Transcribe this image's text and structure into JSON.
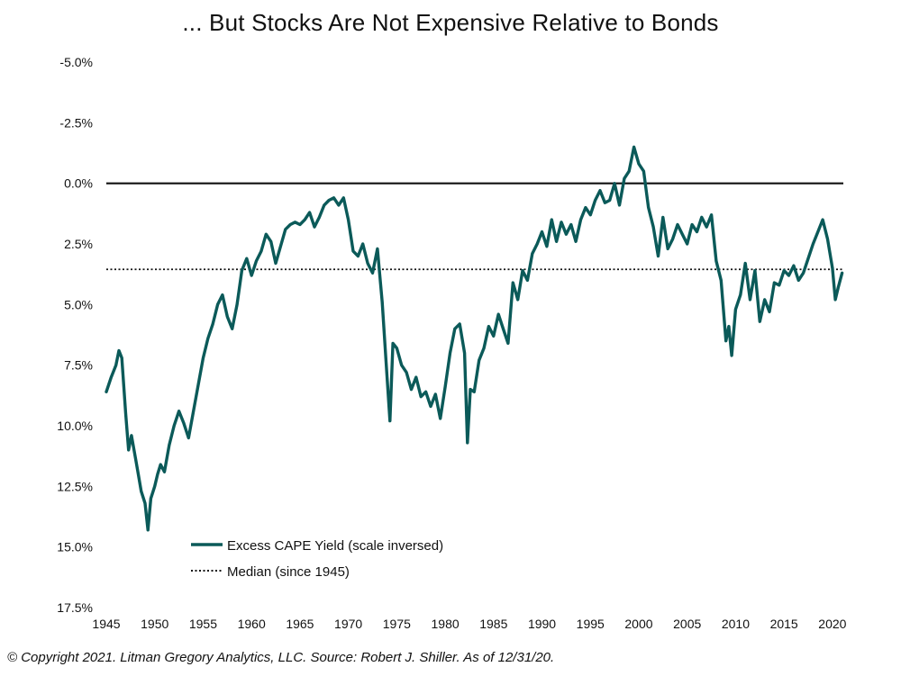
{
  "chart_data": {
    "type": "line",
    "title": "... But Stocks Are Not Expensive Relative to Bonds",
    "xlabel": "",
    "ylabel": "",
    "y_inverted": true,
    "ylim": [
      -5.0,
      17.5
    ],
    "xlim": [
      1945,
      2021.5
    ],
    "y_ticks": [
      -5.0,
      -2.5,
      0.0,
      2.5,
      5.0,
      7.5,
      10.0,
      12.5,
      15.0,
      17.5
    ],
    "y_tick_labels": [
      "-5.0%",
      "-2.5%",
      "0.0%",
      "2.5%",
      "5.0%",
      "7.5%",
      "10.0%",
      "12.5%",
      "15.0%",
      "17.5%"
    ],
    "x_ticks": [
      1945,
      1950,
      1955,
      1960,
      1965,
      1970,
      1975,
      1980,
      1985,
      1990,
      1995,
      2000,
      2005,
      2010,
      2015,
      2020
    ],
    "x_tick_labels": [
      "1945",
      "1950",
      "1955",
      "1960",
      "1965",
      "1970",
      "1975",
      "1980",
      "1985",
      "1990",
      "1995",
      "2000",
      "2005",
      "2010",
      "2015",
      "2020"
    ],
    "reference_lines": [
      {
        "name": "Zero",
        "y": 0.0
      },
      {
        "name": "Median (since 1945)",
        "y": 3.55
      }
    ],
    "legend": [
      {
        "label": "Excess CAPE Yield (scale inversed)",
        "style": "solid",
        "color": "#0b5a59"
      },
      {
        "label": "Median (since 1945)",
        "style": "dotted",
        "color": "#111111"
      }
    ],
    "legend_position": "bottom-left",
    "series": [
      {
        "name": "Excess CAPE Yield (scale inversed)",
        "color": "#0b5a59",
        "x": [
          1945.0,
          1945.5,
          1946.0,
          1946.3,
          1946.6,
          1947.0,
          1947.3,
          1947.6,
          1948.0,
          1948.3,
          1948.6,
          1949.0,
          1949.3,
          1949.6,
          1950.0,
          1950.3,
          1950.6,
          1951.0,
          1951.5,
          1952.0,
          1952.5,
          1953.0,
          1953.5,
          1954.0,
          1954.5,
          1955.0,
          1955.5,
          1956.0,
          1956.5,
          1957.0,
          1957.5,
          1958.0,
          1958.5,
          1959.0,
          1959.5,
          1960.0,
          1960.5,
          1961.0,
          1961.5,
          1962.0,
          1962.5,
          1963.0,
          1963.5,
          1964.0,
          1964.5,
          1965.0,
          1965.5,
          1966.0,
          1966.5,
          1967.0,
          1967.5,
          1968.0,
          1968.5,
          1969.0,
          1969.5,
          1970.0,
          1970.5,
          1971.0,
          1971.5,
          1972.0,
          1972.5,
          1973.0,
          1973.5,
          1974.0,
          1974.3,
          1974.6,
          1975.0,
          1975.5,
          1976.0,
          1976.5,
          1977.0,
          1977.5,
          1978.0,
          1978.5,
          1979.0,
          1979.5,
          1980.0,
          1980.5,
          1981.0,
          1981.5,
          1982.0,
          1982.3,
          1982.6,
          1983.0,
          1983.5,
          1984.0,
          1984.5,
          1985.0,
          1985.5,
          1986.0,
          1986.5,
          1987.0,
          1987.5,
          1988.0,
          1988.5,
          1989.0,
          1989.5,
          1990.0,
          1990.5,
          1991.0,
          1991.5,
          1992.0,
          1992.5,
          1993.0,
          1993.5,
          1994.0,
          1994.5,
          1995.0,
          1995.5,
          1996.0,
          1996.5,
          1997.0,
          1997.5,
          1998.0,
          1998.5,
          1999.0,
          1999.5,
          2000.0,
          2000.5,
          2001.0,
          2001.5,
          2002.0,
          2002.5,
          2003.0,
          2003.5,
          2004.0,
          2004.5,
          2005.0,
          2005.5,
          2006.0,
          2006.5,
          2007.0,
          2007.5,
          2008.0,
          2008.5,
          2009.0,
          2009.3,
          2009.6,
          2010.0,
          2010.5,
          2011.0,
          2011.5,
          2012.0,
          2012.5,
          2013.0,
          2013.5,
          2014.0,
          2014.5,
          2015.0,
          2015.5,
          2016.0,
          2016.5,
          2017.0,
          2017.5,
          2018.0,
          2018.5,
          2019.0,
          2019.5,
          2020.0,
          2020.3,
          2020.6,
          2021.0
        ],
        "values": [
          8.6,
          8.0,
          7.5,
          6.9,
          7.2,
          9.5,
          11.0,
          10.4,
          11.3,
          12.0,
          12.7,
          13.2,
          14.3,
          13.0,
          12.5,
          12.0,
          11.6,
          11.9,
          10.8,
          10.0,
          9.4,
          9.9,
          10.5,
          9.4,
          8.3,
          7.2,
          6.4,
          5.8,
          5.0,
          4.6,
          5.5,
          6.0,
          5.0,
          3.6,
          3.1,
          3.8,
          3.2,
          2.8,
          2.1,
          2.4,
          3.3,
          2.6,
          1.9,
          1.7,
          1.6,
          1.7,
          1.5,
          1.2,
          1.8,
          1.4,
          0.9,
          0.7,
          0.6,
          0.9,
          0.6,
          1.5,
          2.8,
          3.0,
          2.5,
          3.3,
          3.7,
          2.7,
          4.9,
          8.0,
          9.8,
          6.6,
          6.8,
          7.5,
          7.8,
          8.5,
          8.0,
          8.8,
          8.6,
          9.2,
          8.7,
          9.7,
          8.4,
          7.0,
          6.0,
          5.8,
          7.0,
          10.7,
          8.5,
          8.6,
          7.3,
          6.8,
          5.9,
          6.3,
          5.4,
          6.0,
          6.6,
          4.1,
          4.8,
          3.6,
          4.0,
          2.9,
          2.5,
          2.0,
          2.6,
          1.5,
          2.4,
          1.6,
          2.1,
          1.7,
          2.4,
          1.5,
          1.0,
          1.3,
          0.7,
          0.3,
          0.8,
          0.7,
          0.0,
          0.9,
          -0.2,
          -0.5,
          -1.5,
          -0.8,
          -0.5,
          1.0,
          1.8,
          3.0,
          1.4,
          2.7,
          2.3,
          1.7,
          2.1,
          2.5,
          1.7,
          2.0,
          1.4,
          1.8,
          1.3,
          3.2,
          4.0,
          6.5,
          5.9,
          7.1,
          5.2,
          4.6,
          3.3,
          4.8,
          3.6,
          5.7,
          4.8,
          5.3,
          4.1,
          4.2,
          3.6,
          3.8,
          3.4,
          4.0,
          3.7,
          3.1,
          2.5,
          2.0,
          1.5,
          2.3,
          3.5,
          4.8,
          4.3,
          3.7
        ]
      }
    ]
  },
  "source_note": "© Copyright 2021. Litman Gregory Analytics, LLC. Source: Robert J. Shiller. As of 12/31/20."
}
